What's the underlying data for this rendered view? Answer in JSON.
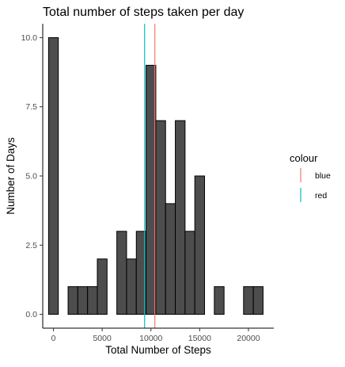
{
  "chart_data": {
    "type": "bar",
    "title": "Total number of steps taken per day",
    "xlabel": "Total Number of Steps",
    "ylabel": "Number of Days",
    "bin_width": 1000,
    "bins": [
      {
        "x": 0,
        "count": 10
      },
      {
        "x": 1000,
        "count": 0
      },
      {
        "x": 2000,
        "count": 1
      },
      {
        "x": 3000,
        "count": 1
      },
      {
        "x": 4000,
        "count": 1
      },
      {
        "x": 5000,
        "count": 2
      },
      {
        "x": 6000,
        "count": 0
      },
      {
        "x": 7000,
        "count": 3
      },
      {
        "x": 8000,
        "count": 2
      },
      {
        "x": 9000,
        "count": 3
      },
      {
        "x": 10000,
        "count": 9
      },
      {
        "x": 11000,
        "count": 7
      },
      {
        "x": 12000,
        "count": 4
      },
      {
        "x": 13000,
        "count": 7
      },
      {
        "x": 14000,
        "count": 3
      },
      {
        "x": 15000,
        "count": 5
      },
      {
        "x": 16000,
        "count": 0
      },
      {
        "x": 17000,
        "count": 1
      },
      {
        "x": 18000,
        "count": 0
      },
      {
        "x": 19000,
        "count": 0
      },
      {
        "x": 20000,
        "count": 1
      },
      {
        "x": 21000,
        "count": 1
      }
    ],
    "xlim": [
      -1100,
      22600
    ],
    "ylim": [
      -0.5,
      10.5
    ],
    "x_ticks": [
      0,
      5000,
      10000,
      15000,
      20000
    ],
    "x_tick_labels": [
      "0",
      "5000",
      "10000",
      "15000",
      "20000"
    ],
    "y_ticks": [
      0,
      2.5,
      5,
      7.5,
      10
    ],
    "y_tick_labels": [
      "0.0",
      "2.5",
      "5.0",
      "7.5",
      "10.0"
    ],
    "vlines": [
      {
        "legend_label": "blue",
        "x": 10400,
        "color": "#F8766D"
      },
      {
        "legend_label": "red",
        "x": 9350,
        "color": "#00BFC4"
      }
    ],
    "legend": {
      "title": "colour",
      "placement": "right"
    },
    "bar_fill": "#4D4D4D",
    "bar_stroke": "#000000",
    "grid": false
  }
}
